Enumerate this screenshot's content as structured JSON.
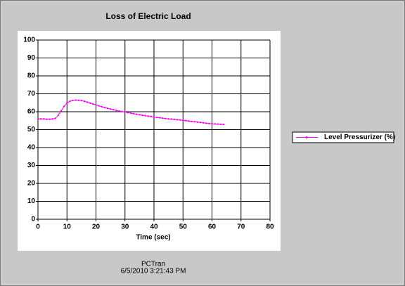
{
  "chart_data": {
    "type": "line",
    "title": "Loss of Electric Load",
    "xlabel": "Time (sec)",
    "footer": [
      "PCTran",
      "6/5/2010 3:21:43 PM"
    ],
    "x": [
      0,
      1,
      2,
      3,
      4,
      5,
      6,
      7,
      8,
      9,
      10,
      11,
      12,
      13,
      14,
      15,
      16,
      17,
      18,
      19,
      20,
      21,
      22,
      23,
      24,
      25,
      26,
      27,
      28,
      29,
      30,
      31,
      32,
      33,
      34,
      35,
      36,
      37,
      38,
      39,
      40,
      41,
      42,
      43,
      44,
      45,
      46,
      47,
      48,
      49,
      50,
      51,
      52,
      53,
      54,
      55,
      56,
      57,
      58,
      59,
      60,
      61,
      62,
      63,
      64
    ],
    "series": [
      {
        "name": "Level Pressurizer (%)",
        "color": "#ff00ff",
        "values": [
          56,
          56,
          56,
          55.8,
          55.8,
          56,
          56.3,
          58,
          60.5,
          63,
          64.8,
          65.8,
          66.3,
          66.5,
          66.4,
          66.2,
          65.8,
          65.3,
          64.8,
          64.3,
          63.8,
          63.3,
          62.8,
          62.3,
          61.9,
          61.5,
          61.1,
          60.7,
          60.4,
          60.1,
          59.8,
          59.5,
          59.2,
          58.9,
          58.6,
          58.3,
          58,
          57.8,
          57.5,
          57.3,
          57,
          56.8,
          56.6,
          56.4,
          56.2,
          56,
          55.9,
          55.7,
          55.5,
          55.4,
          55.2,
          55,
          54.8,
          54.6,
          54.4,
          54.2,
          54,
          53.8,
          53.6,
          53.4,
          53.3,
          53.2,
          53.1,
          53,
          52.9
        ]
      }
    ],
    "xlim": [
      0,
      80
    ],
    "xticks": [
      0,
      10,
      20,
      30,
      40,
      50,
      60,
      70,
      80
    ],
    "ylim": [
      0,
      100
    ],
    "yticks": [
      0,
      10,
      20,
      30,
      40,
      50,
      60,
      70,
      80,
      90,
      100
    ],
    "grid": true,
    "legend": "right"
  }
}
